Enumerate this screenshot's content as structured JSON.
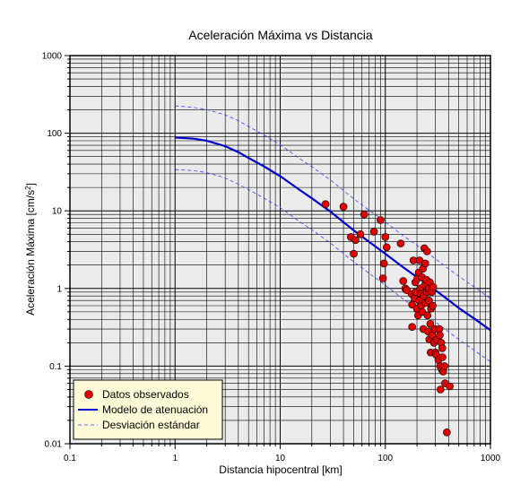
{
  "chart_data": {
    "type": "scatter",
    "title": "Aceleración Máxima vs Distancia",
    "xlabel": "Distancia hipocentral [km]",
    "ylabel": "Aceleración Máxima [cm/s",
    "ylabel_sup": "2",
    "ylabel_end": "]",
    "xscale": "log",
    "yscale": "log",
    "xlim": [
      0.1,
      1000
    ],
    "ylim": [
      0.01,
      1000
    ],
    "xticks": [
      0.1,
      1,
      10,
      100,
      1000
    ],
    "xtick_labels": [
      "0.1",
      "1",
      "10",
      "100",
      "1000"
    ],
    "yticks": [
      0.01,
      0.1,
      1,
      10,
      100,
      1000
    ],
    "ytick_labels": [
      "0.01",
      "0.1",
      "1",
      "10",
      "100",
      "1000"
    ],
    "grid": true,
    "legend_position": "bottom-left",
    "series": [
      {
        "name": "Datos observados",
        "kind": "scatter",
        "color": "#e00000",
        "points": [
          [
            27,
            12.2
          ],
          [
            40,
            11.3
          ],
          [
            47,
            4.6
          ],
          [
            50,
            2.8
          ],
          [
            52,
            4.2
          ],
          [
            58,
            5.0
          ],
          [
            63,
            9.0
          ],
          [
            78,
            5.4
          ],
          [
            90,
            7.6
          ],
          [
            95,
            1.35
          ],
          [
            97,
            2.1
          ],
          [
            100,
            4.6
          ],
          [
            103,
            3.4
          ],
          [
            140,
            3.8
          ],
          [
            148,
            1.25
          ],
          [
            155,
            1.0
          ],
          [
            160,
            0.95
          ],
          [
            178,
            0.85
          ],
          [
            180,
            0.62
          ],
          [
            180,
            0.32
          ],
          [
            185,
            2.3
          ],
          [
            190,
            0.75
          ],
          [
            193,
            1.2
          ],
          [
            195,
            0.9
          ],
          [
            200,
            0.55
          ],
          [
            202,
            1.35
          ],
          [
            205,
            0.45
          ],
          [
            208,
            1.6
          ],
          [
            210,
            0.7
          ],
          [
            212,
            2.3
          ],
          [
            215,
            1.0
          ],
          [
            218,
            0.85
          ],
          [
            220,
            0.6
          ],
          [
            222,
            1.4
          ],
          [
            225,
            0.5
          ],
          [
            228,
            1.8
          ],
          [
            230,
            0.3
          ],
          [
            232,
            0.8
          ],
          [
            235,
            3.3
          ],
          [
            238,
            1.1
          ],
          [
            240,
            2.1
          ],
          [
            242,
            0.65
          ],
          [
            245,
            1.3
          ],
          [
            248,
            0.9
          ],
          [
            250,
            3.0
          ],
          [
            252,
            0.45
          ],
          [
            255,
            0.28
          ],
          [
            258,
            1.0
          ],
          [
            260,
            0.7
          ],
          [
            262,
            0.22
          ],
          [
            265,
            1.2
          ],
          [
            268,
            0.35
          ],
          [
            270,
            0.15
          ],
          [
            272,
            0.55
          ],
          [
            275,
            0.9
          ],
          [
            278,
            0.25
          ],
          [
            282,
            0.6
          ],
          [
            285,
            1.05
          ],
          [
            290,
            0.2
          ],
          [
            295,
            0.3
          ],
          [
            300,
            0.15
          ],
          [
            305,
            0.14
          ],
          [
            310,
            0.22
          ],
          [
            320,
            0.12
          ],
          [
            325,
            0.3
          ],
          [
            330,
            0.25
          ],
          [
            332,
            0.1
          ],
          [
            335,
            0.05
          ],
          [
            340,
            0.2
          ],
          [
            345,
            0.09
          ],
          [
            348,
            0.17
          ],
          [
            350,
            0.13
          ],
          [
            355,
            0.085
          ],
          [
            365,
            0.1
          ],
          [
            370,
            0.06
          ],
          [
            385,
            0.014
          ],
          [
            410,
            0.055
          ]
        ]
      },
      {
        "name": "Modelo de atenuación",
        "kind": "line",
        "color": "#0000d0",
        "x": [
          1,
          1.5,
          2,
          3,
          4,
          5,
          7,
          10,
          15,
          20,
          30,
          50,
          70,
          100,
          150,
          200,
          300,
          500,
          700,
          1000
        ],
        "y": [
          88,
          85,
          80,
          68,
          57,
          48,
          37.5,
          28,
          19,
          14.5,
          9.8,
          5.6,
          4.0,
          2.8,
          1.85,
          1.4,
          0.95,
          0.56,
          0.41,
          0.29
        ]
      },
      {
        "name": "Desviación estándar",
        "kind": "dashed",
        "color": "#3c3cff",
        "x": [
          1,
          1.5,
          2,
          3,
          4,
          5,
          7,
          10,
          15,
          20,
          30,
          50,
          70,
          100,
          150,
          200,
          300,
          500,
          700,
          1000
        ],
        "y": [
          225,
          215,
          202,
          172,
          145,
          122,
          95,
          71,
          48,
          37,
          25,
          14.3,
          10.2,
          7.2,
          4.7,
          3.6,
          2.4,
          1.43,
          1.05,
          0.74
        ]
      },
      {
        "kind": "dashed",
        "color": "#3c3cff",
        "x": [
          1,
          1.5,
          2,
          3,
          4,
          5,
          7,
          10,
          15,
          20,
          30,
          50,
          70,
          100,
          150,
          200,
          300,
          500,
          700,
          1000
        ],
        "y": [
          34,
          33,
          31,
          26.5,
          22,
          18.8,
          14.6,
          11,
          7.4,
          5.7,
          3.85,
          2.2,
          1.57,
          1.1,
          0.72,
          0.55,
          0.37,
          0.22,
          0.16,
          0.114
        ]
      }
    ]
  }
}
